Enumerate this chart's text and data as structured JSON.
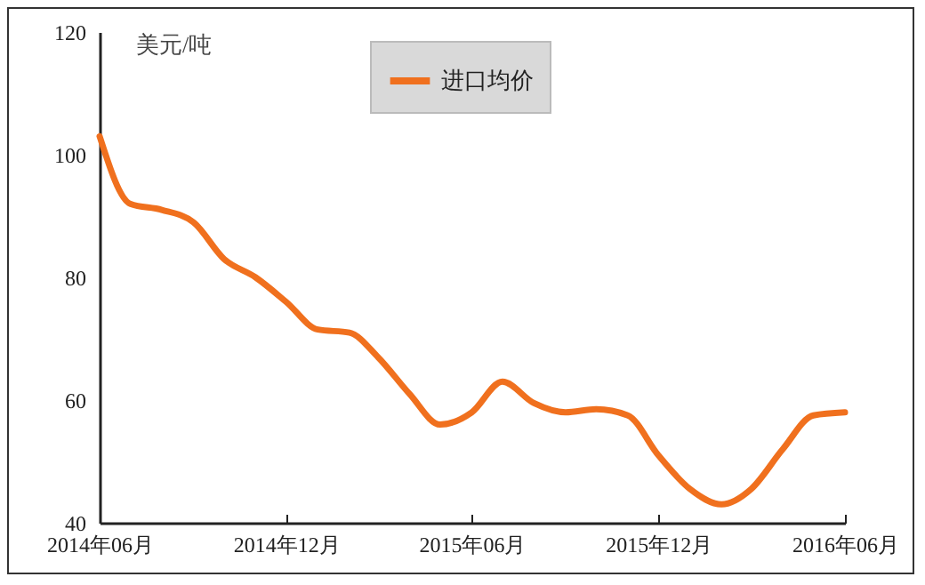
{
  "chart_data": {
    "type": "line",
    "ylabel": "美元/吨",
    "x": [
      "2014-06",
      "2014-07",
      "2014-08",
      "2014-09",
      "2014-10",
      "2014-11",
      "2014-12",
      "2015-01",
      "2015-02",
      "2015-03",
      "2015-04",
      "2015-05",
      "2015-06",
      "2015-07",
      "2015-08",
      "2015-09",
      "2015-10",
      "2015-11",
      "2015-12",
      "2016-01",
      "2016-02",
      "2016-03",
      "2016-04",
      "2016-05",
      "2016-06"
    ],
    "series": [
      {
        "name": "进口均价",
        "color": "#f0701e",
        "values": [
          103,
          92,
          91,
          89,
          83,
          80,
          76,
          71.5,
          71,
          67,
          61,
          56,
          58,
          63,
          59.5,
          58,
          58.5,
          57.5,
          51,
          45.5,
          43,
          45.5,
          52,
          57.5,
          58
        ]
      }
    ],
    "xlim": [
      "2014-06",
      "2016-06"
    ],
    "xticks": [
      {
        "value": "2014-06",
        "label": "2014年06月"
      },
      {
        "value": "2014-12",
        "label": "2014年12月"
      },
      {
        "value": "2015-06",
        "label": "2015年06月"
      },
      {
        "value": "2015-12",
        "label": "2015年12月"
      },
      {
        "value": "2016-06",
        "label": "2016年06月"
      }
    ],
    "ylim": [
      40,
      120
    ],
    "yticks": [
      40,
      60,
      80,
      100,
      120
    ],
    "grid": false,
    "legend": "top",
    "line_style": "solid",
    "marker": "none"
  }
}
